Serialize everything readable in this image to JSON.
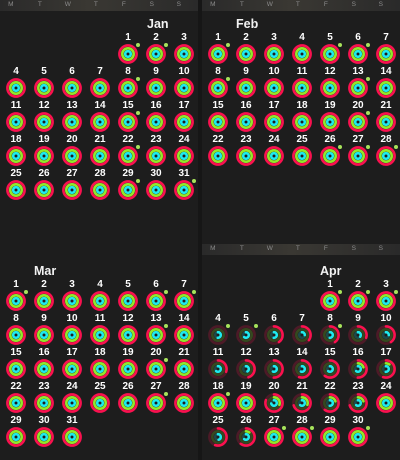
{
  "weekday_labels": [
    "M",
    "T",
    "W",
    "T",
    "F",
    "S",
    "S"
  ],
  "colors": {
    "move": "#fa114f",
    "exercise": "#92e82a",
    "stand": "#1eeaef",
    "star": "#a7e35b"
  },
  "months": [
    {
      "name": "Jan",
      "start_weekday": 5,
      "days": [
        {
          "d": "1",
          "m": 1,
          "e": 1,
          "s": 1,
          "star": true
        },
        {
          "d": "2",
          "m": 1,
          "e": 1,
          "s": 1,
          "star": true
        },
        {
          "d": "3",
          "m": 1,
          "e": 1,
          "s": 1,
          "star": false
        },
        {
          "d": "4",
          "m": 1,
          "e": 1,
          "s": 1,
          "star": false
        },
        {
          "d": "5",
          "m": 1,
          "e": 1,
          "s": 1,
          "star": false
        },
        {
          "d": "6",
          "m": 1,
          "e": 1,
          "s": 1,
          "star": false
        },
        {
          "d": "7",
          "m": 1,
          "e": 1,
          "s": 1,
          "star": false
        },
        {
          "d": "8",
          "m": 1,
          "e": 1,
          "s": 1,
          "star": true
        },
        {
          "d": "9",
          "m": 1,
          "e": 1,
          "s": 1,
          "star": false
        },
        {
          "d": "10",
          "m": 1,
          "e": 1,
          "s": 1,
          "star": false
        },
        {
          "d": "11",
          "m": 1,
          "e": 1,
          "s": 1,
          "star": false
        },
        {
          "d": "12",
          "m": 1,
          "e": 1,
          "s": 1,
          "star": false
        },
        {
          "d": "13",
          "m": 1,
          "e": 1,
          "s": 1,
          "star": false
        },
        {
          "d": "14",
          "m": 1,
          "e": 1,
          "s": 1,
          "star": false
        },
        {
          "d": "15",
          "m": 1,
          "e": 1,
          "s": 1,
          "star": true
        },
        {
          "d": "16",
          "m": 1,
          "e": 1,
          "s": 1,
          "star": false
        },
        {
          "d": "17",
          "m": 1,
          "e": 1,
          "s": 1,
          "star": false
        },
        {
          "d": "18",
          "m": 1,
          "e": 1,
          "s": 1,
          "star": false
        },
        {
          "d": "19",
          "m": 1,
          "e": 1,
          "s": 1,
          "star": false
        },
        {
          "d": "20",
          "m": 1,
          "e": 1,
          "s": 1,
          "star": false
        },
        {
          "d": "21",
          "m": 1,
          "e": 1,
          "s": 1,
          "star": false
        },
        {
          "d": "22",
          "m": 1,
          "e": 1,
          "s": 1,
          "star": true
        },
        {
          "d": "23",
          "m": 1,
          "e": 1,
          "s": 1,
          "star": false
        },
        {
          "d": "24",
          "m": 1,
          "e": 1,
          "s": 1,
          "star": false
        },
        {
          "d": "25",
          "m": 1,
          "e": 1,
          "s": 1,
          "star": false
        },
        {
          "d": "26",
          "m": 1,
          "e": 1,
          "s": 1,
          "star": false
        },
        {
          "d": "27",
          "m": 1,
          "e": 1,
          "s": 1,
          "star": false
        },
        {
          "d": "28",
          "m": 1,
          "e": 1,
          "s": 1,
          "star": false
        },
        {
          "d": "29",
          "m": 1,
          "e": 1,
          "s": 1,
          "star": true
        },
        {
          "d": "30",
          "m": 1,
          "e": 1,
          "s": 1,
          "star": false
        },
        {
          "d": "31",
          "m": 1,
          "e": 1,
          "s": 1,
          "star": true
        }
      ]
    },
    {
      "name": "Feb",
      "start_weekday": 1,
      "days": [
        {
          "d": "1",
          "m": 1,
          "e": 1,
          "s": 1,
          "star": true
        },
        {
          "d": "2",
          "m": 1,
          "e": 1,
          "s": 1,
          "star": false
        },
        {
          "d": "3",
          "m": 1,
          "e": 1,
          "s": 1,
          "star": false
        },
        {
          "d": "4",
          "m": 1,
          "e": 1,
          "s": 1,
          "star": false
        },
        {
          "d": "5",
          "m": 1,
          "e": 1,
          "s": 1,
          "star": true
        },
        {
          "d": "6",
          "m": 1,
          "e": 1,
          "s": 1,
          "star": true
        },
        {
          "d": "7",
          "m": 1,
          "e": 1,
          "s": 1,
          "star": false
        },
        {
          "d": "8",
          "m": 1,
          "e": 1,
          "s": 1,
          "star": true
        },
        {
          "d": "9",
          "m": 1,
          "e": 1,
          "s": 1,
          "star": false
        },
        {
          "d": "10",
          "m": 1,
          "e": 1,
          "s": 1,
          "star": false
        },
        {
          "d": "11",
          "m": 1,
          "e": 1,
          "s": 1,
          "star": false
        },
        {
          "d": "12",
          "m": 1,
          "e": 1,
          "s": 1,
          "star": false
        },
        {
          "d": "13",
          "m": 1,
          "e": 1,
          "s": 1,
          "star": true
        },
        {
          "d": "14",
          "m": 1,
          "e": 1,
          "s": 1,
          "star": false
        },
        {
          "d": "15",
          "m": 1,
          "e": 1,
          "s": 1,
          "star": false
        },
        {
          "d": "16",
          "m": 1,
          "e": 1,
          "s": 1,
          "star": false
        },
        {
          "d": "17",
          "m": 1,
          "e": 1,
          "s": 1,
          "star": false
        },
        {
          "d": "18",
          "m": 1,
          "e": 1,
          "s": 1,
          "star": false
        },
        {
          "d": "19",
          "m": 1,
          "e": 1,
          "s": 1,
          "star": false
        },
        {
          "d": "20",
          "m": 1,
          "e": 1,
          "s": 1,
          "star": true
        },
        {
          "d": "21",
          "m": 1,
          "e": 1,
          "s": 1,
          "star": false
        },
        {
          "d": "22",
          "m": 1,
          "e": 1,
          "s": 1,
          "star": false
        },
        {
          "d": "23",
          "m": 1,
          "e": 1,
          "s": 1,
          "star": false
        },
        {
          "d": "24",
          "m": 1,
          "e": 1,
          "s": 1,
          "star": false
        },
        {
          "d": "25",
          "m": 1,
          "e": 1,
          "s": 1,
          "star": false
        },
        {
          "d": "26",
          "m": 1,
          "e": 1,
          "s": 1,
          "star": true
        },
        {
          "d": "27",
          "m": 1,
          "e": 1,
          "s": 1,
          "star": true
        },
        {
          "d": "28",
          "m": 1,
          "e": 1,
          "s": 1,
          "star": true
        }
      ]
    },
    {
      "name": "Mar",
      "start_weekday": 1,
      "days": [
        {
          "d": "1",
          "m": 1,
          "e": 1,
          "s": 1,
          "star": true
        },
        {
          "d": "2",
          "m": 1,
          "e": 1,
          "s": 1,
          "star": false
        },
        {
          "d": "3",
          "m": 1,
          "e": 1,
          "s": 1,
          "star": false
        },
        {
          "d": "4",
          "m": 1,
          "e": 1,
          "s": 1,
          "star": false
        },
        {
          "d": "5",
          "m": 1,
          "e": 1,
          "s": 1,
          "star": false
        },
        {
          "d": "6",
          "m": 1,
          "e": 1,
          "s": 1,
          "star": true
        },
        {
          "d": "7",
          "m": 1,
          "e": 1,
          "s": 1,
          "star": true
        },
        {
          "d": "8",
          "m": 1,
          "e": 1,
          "s": 1,
          "star": false
        },
        {
          "d": "9",
          "m": 1,
          "e": 1,
          "s": 1,
          "star": false
        },
        {
          "d": "10",
          "m": 1,
          "e": 1,
          "s": 1,
          "star": false
        },
        {
          "d": "11",
          "m": 1,
          "e": 1,
          "s": 1,
          "star": false
        },
        {
          "d": "12",
          "m": 1,
          "e": 1,
          "s": 1,
          "star": false
        },
        {
          "d": "13",
          "m": 1,
          "e": 1,
          "s": 1,
          "star": true
        },
        {
          "d": "14",
          "m": 1,
          "e": 1,
          "s": 1,
          "star": false
        },
        {
          "d": "15",
          "m": 1,
          "e": 1,
          "s": 1,
          "star": false
        },
        {
          "d": "16",
          "m": 1,
          "e": 1,
          "s": 1,
          "star": false
        },
        {
          "d": "17",
          "m": 1,
          "e": 1,
          "s": 1,
          "star": false
        },
        {
          "d": "18",
          "m": 1,
          "e": 1,
          "s": 1,
          "star": false
        },
        {
          "d": "19",
          "m": 1,
          "e": 1,
          "s": 1,
          "star": false
        },
        {
          "d": "20",
          "m": 1,
          "e": 1,
          "s": 1,
          "star": true
        },
        {
          "d": "21",
          "m": 1,
          "e": 1,
          "s": 1,
          "star": false
        },
        {
          "d": "22",
          "m": 1,
          "e": 1,
          "s": 1,
          "star": false
        },
        {
          "d": "23",
          "m": 1,
          "e": 1,
          "s": 1,
          "star": false
        },
        {
          "d": "24",
          "m": 1,
          "e": 1,
          "s": 1,
          "star": false
        },
        {
          "d": "25",
          "m": 1,
          "e": 1,
          "s": 1,
          "star": false
        },
        {
          "d": "26",
          "m": 1,
          "e": 1,
          "s": 1,
          "star": false
        },
        {
          "d": "27",
          "m": 1,
          "e": 1,
          "s": 1,
          "star": true
        },
        {
          "d": "28",
          "m": 1,
          "e": 1,
          "s": 1,
          "star": false
        },
        {
          "d": "29",
          "m": 1,
          "e": 1,
          "s": 1,
          "star": false
        },
        {
          "d": "30",
          "m": 1,
          "e": 1,
          "s": 1,
          "star": false
        },
        {
          "d": "31",
          "m": 1,
          "e": 1,
          "s": 1,
          "star": false
        }
      ]
    },
    {
      "name": "Apr",
      "start_weekday": 5,
      "days": [
        {
          "d": "1",
          "m": 1,
          "e": 1,
          "s": 1,
          "star": true
        },
        {
          "d": "2",
          "m": 1,
          "e": 1,
          "s": 1,
          "star": true
        },
        {
          "d": "3",
          "m": 1,
          "e": 1,
          "s": 1,
          "star": true
        },
        {
          "d": "4",
          "m": 0,
          "e": 0,
          "s": 0.5,
          "star": true
        },
        {
          "d": "5",
          "m": 0,
          "e": 0,
          "s": 0.6,
          "star": true
        },
        {
          "d": "6",
          "m": 0.4,
          "e": 0,
          "s": 0.5,
          "star": false
        },
        {
          "d": "7",
          "m": 0.35,
          "e": 0,
          "s": 0.25,
          "star": false
        },
        {
          "d": "8",
          "m": 0.4,
          "e": 0,
          "s": 0.5,
          "star": true
        },
        {
          "d": "9",
          "m": 0.3,
          "e": 0,
          "s": 0.35,
          "star": false
        },
        {
          "d": "10",
          "m": 0.4,
          "e": 0,
          "s": 0.25,
          "star": false
        },
        {
          "d": "11",
          "m": 0.3,
          "e": 0,
          "s": 0.6,
          "star": false
        },
        {
          "d": "12",
          "m": 0.45,
          "e": 0,
          "s": 0.4,
          "star": false
        },
        {
          "d": "13",
          "m": 0.5,
          "e": 0,
          "s": 0.55,
          "star": false
        },
        {
          "d": "14",
          "m": 0.55,
          "e": 0,
          "s": 0.55,
          "star": false
        },
        {
          "d": "15",
          "m": 0.6,
          "e": 0,
          "s": 0.6,
          "star": false
        },
        {
          "d": "16",
          "m": 0.5,
          "e": 0.2,
          "s": 0.6,
          "star": false
        },
        {
          "d": "17",
          "m": 0.55,
          "e": 0.1,
          "s": 0.5,
          "star": false
        },
        {
          "d": "18",
          "m": 1,
          "e": 1,
          "s": 1,
          "star": true
        },
        {
          "d": "19",
          "m": 1,
          "e": 1,
          "s": 1,
          "star": false
        },
        {
          "d": "20",
          "m": 0.8,
          "e": 0.3,
          "s": 0.7,
          "star": false
        },
        {
          "d": "21",
          "m": 0.7,
          "e": 0.3,
          "s": 0.6,
          "star": false
        },
        {
          "d": "22",
          "m": 0.6,
          "e": 0.2,
          "s": 0.5,
          "star": false
        },
        {
          "d": "23",
          "m": 0.7,
          "e": 0.2,
          "s": 0.6,
          "star": false
        },
        {
          "d": "24",
          "m": 1,
          "e": 1,
          "s": 1,
          "star": false
        },
        {
          "d": "25",
          "m": 0.55,
          "e": 0,
          "s": 0.45,
          "star": false
        },
        {
          "d": "26",
          "m": 0.6,
          "e": 0.1,
          "s": 0.6,
          "star": false
        },
        {
          "d": "27",
          "m": 1,
          "e": 1,
          "s": 1,
          "star": true
        },
        {
          "d": "28",
          "m": 1,
          "e": 1,
          "s": 1,
          "star": true
        },
        {
          "d": "29",
          "m": 1,
          "e": 1,
          "s": 1,
          "star": false
        },
        {
          "d": "30",
          "m": 1,
          "e": 1,
          "s": 1,
          "star": true
        }
      ]
    }
  ]
}
